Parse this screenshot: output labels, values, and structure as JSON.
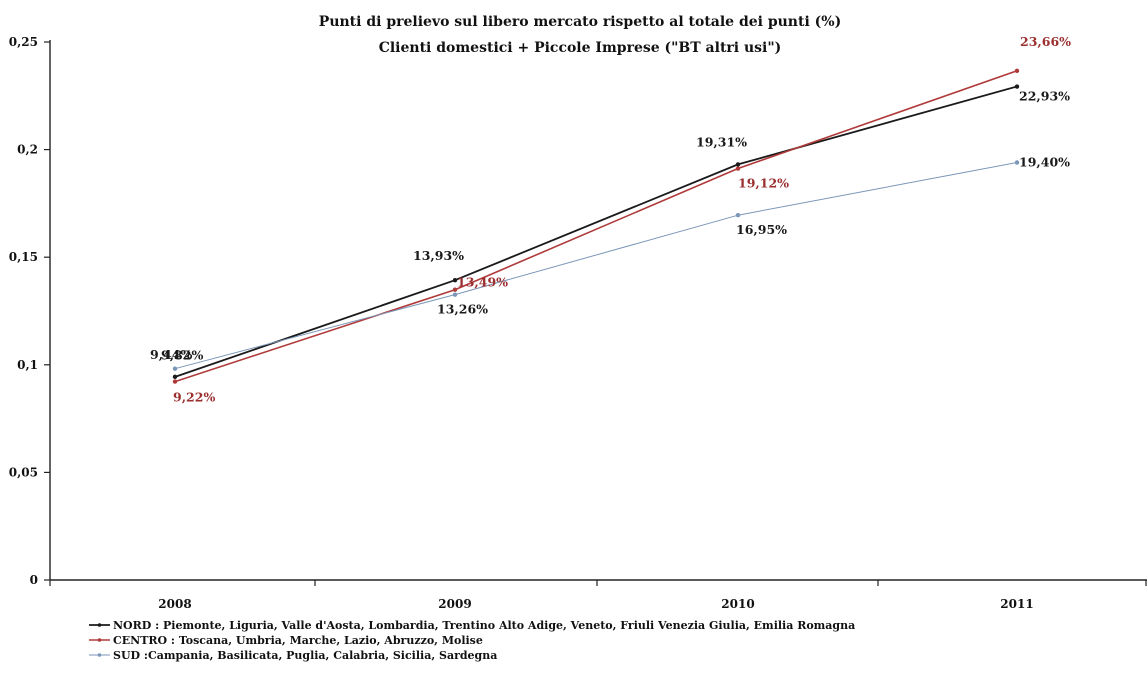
{
  "chart_data": {
    "type": "line",
    "title": "Punti di prelievo sul libero mercato rispetto al totale dei punti (%)",
    "subtitle": "Clienti domestici + Piccole Imprese (\"BT altri usi\")",
    "categories": [
      "2008",
      "2009",
      "2010",
      "2011"
    ],
    "ylim": [
      0,
      0.25
    ],
    "yticks": [
      "0",
      "0,05",
      "0,1",
      "0,15",
      "0,2",
      "0,25"
    ],
    "ytick_values": [
      0,
      0.05,
      0.1,
      0.15,
      0.2,
      0.25
    ],
    "grid": false,
    "legend_position": "bottom-left",
    "series": [
      {
        "name": "NORD : Piemonte, Liguria, Valle d'Aosta, Lombardia, Trentino Alto Adige, Veneto, Friuli Venezia Giulia, Emilia Romagna",
        "values": [
          0.0944,
          0.1393,
          0.1931,
          0.2293
        ],
        "labels": [
          "9,44%",
          "13,93%",
          "19,31%",
          "22,93%"
        ],
        "color": "#1a1a1a",
        "label_color": "#1a1a1a"
      },
      {
        "name": "CENTRO : Toscana, Umbria, Marche, Lazio, Abruzzo, Molise",
        "values": [
          0.0922,
          0.1349,
          0.1912,
          0.2366
        ],
        "labels": [
          "9,22%",
          "13,49%",
          "19,12%",
          "23,66%"
        ],
        "color": "#b03a3a",
        "label_color": "#9b2f2f"
      },
      {
        "name": "SUD :Campania, Basilicata, Puglia, Calabria, Sicilia, Sardegna",
        "values": [
          0.0982,
          0.1326,
          0.1695,
          0.194
        ],
        "labels": [
          "9,82%",
          "13,26%",
          "16,95%",
          "19,40%"
        ],
        "color": "#7a96b8",
        "label_color": "#1a1a1a"
      }
    ]
  }
}
